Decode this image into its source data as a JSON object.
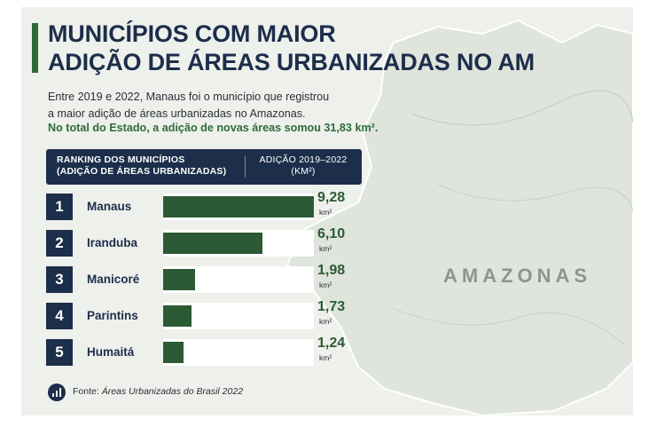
{
  "header": {
    "title_line1": "MUNICÍPIOS COM MAIOR",
    "title_line2": "ADIÇÃO DE ÁREAS URBANIZADAS NO AM",
    "intro_line1": "Entre 2019 e 2022, Manaus foi o município que registrou",
    "intro_line2": "a maior adição de áreas urbanizadas no Amazonas.",
    "highlight": "No total do Estado, a adição de novas áreas somou 31,83 km²."
  },
  "table_header": {
    "left_line1": "RANKING DOS MUNICÍPIOS",
    "left_line2": "(ADIÇÃO DE ÁREAS URBANIZADAS)",
    "right_line1": "ADIÇÃO 2019–2022",
    "right_line2": "(KM²)"
  },
  "map_label": "AMAZONAS",
  "source": {
    "prefix": "Fonte: ",
    "name": "Áreas Urbanizadas do Brasil 2022"
  },
  "colors": {
    "navy": "#1c2e4a",
    "green": "#2e6b3a",
    "bar": "#2b5a34",
    "map": "#dfe5dc"
  },
  "chart_data": {
    "type": "bar",
    "orientation": "horizontal",
    "unit": "km²",
    "xlim": [
      0,
      9.28
    ],
    "categories": [
      "Manaus",
      "Iranduba",
      "Manicoré",
      "Parintins",
      "Humaitá"
    ],
    "ranks": [
      "1",
      "2",
      "3",
      "4",
      "5"
    ],
    "values": [
      9.28,
      6.1,
      1.98,
      1.73,
      1.24
    ],
    "labels": [
      "9,28",
      "6,10",
      "1,98",
      "1,73",
      "1,24"
    ]
  }
}
